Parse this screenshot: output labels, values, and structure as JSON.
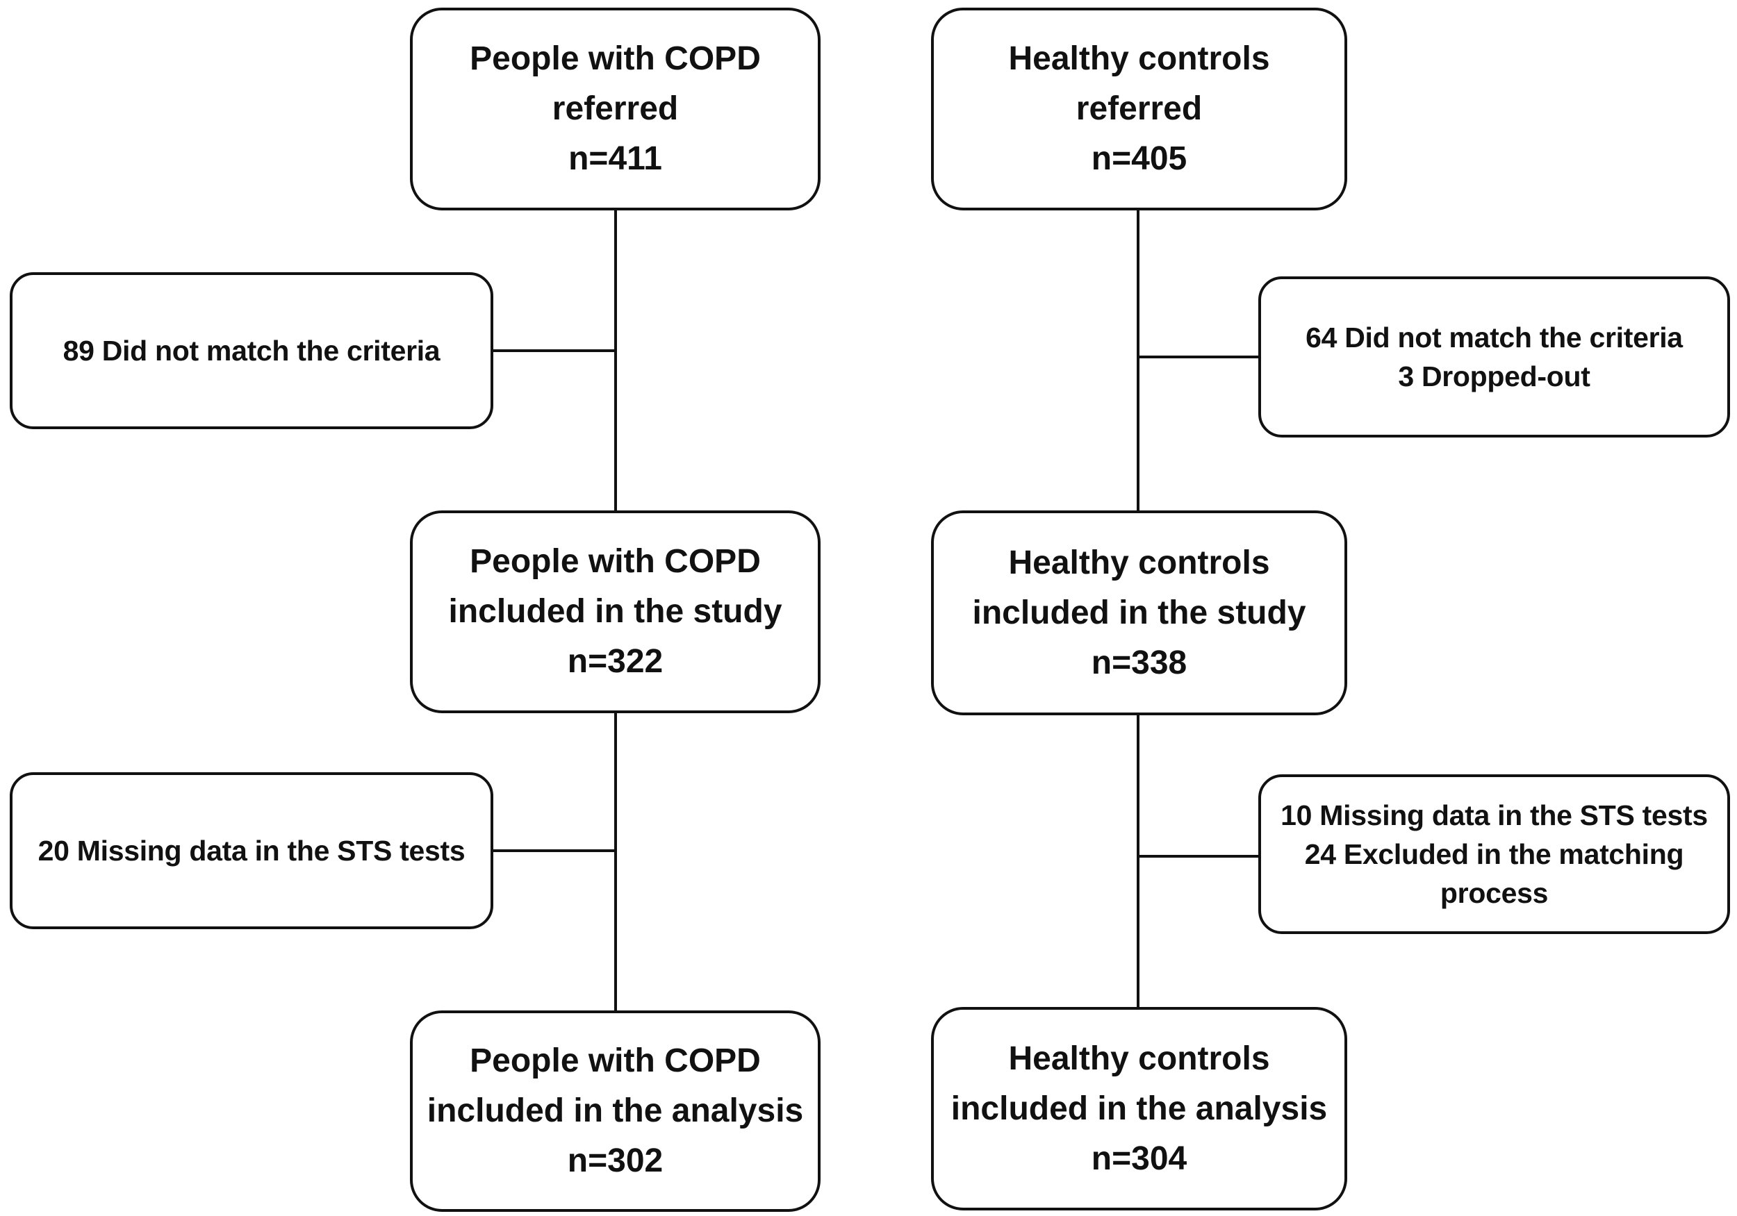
{
  "colors": {
    "border": "#111111",
    "line": "#111111",
    "text": "#111111",
    "background": "#ffffff"
  },
  "flowchart": {
    "copd": {
      "referred": [
        "People with COPD",
        "referred",
        "n=411"
      ],
      "excluded_after_referral": [
        "89 Did not match the criteria"
      ],
      "included_study": [
        "People with COPD",
        "included in the study",
        "n=322"
      ],
      "excluded_after_study": [
        "20 Missing data in the STS tests"
      ],
      "included_analysis": [
        "People with COPD",
        "included in the analysis",
        "n=302"
      ]
    },
    "healthy_controls": {
      "referred": [
        "Healthy controls",
        "referred",
        "n=405"
      ],
      "excluded_after_referral": [
        "64 Did not match the criteria",
        "3 Dropped-out"
      ],
      "included_study": [
        "Healthy controls",
        "included in the study",
        "n=338"
      ],
      "excluded_after_study": [
        "10 Missing data in the STS tests",
        "24 Excluded in the matching process"
      ],
      "included_analysis": [
        "Healthy controls",
        "included in the analysis",
        "n=304"
      ]
    }
  }
}
